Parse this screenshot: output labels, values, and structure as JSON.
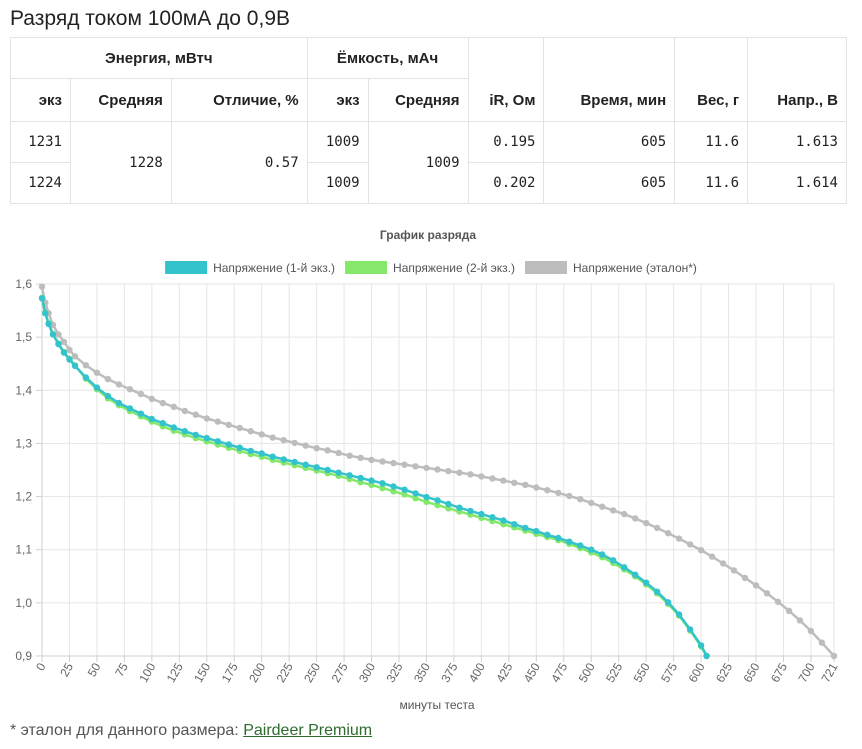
{
  "page": {
    "title": "Разряд током 100мА до 0,9В",
    "footnote_prefix": "* эталон для данного размера: ",
    "footnote_link": "Pairdeer Premium"
  },
  "table": {
    "group_energy": "Энергия, мВтч",
    "group_capacity": "Ёмкость, мАч",
    "col_sample": "экз",
    "col_average": "Средняя",
    "col_difference": "Отличие, %",
    "col_sample2": "экз",
    "col_average2": "Средняя",
    "col_ir": "iR, Ом",
    "col_time": "Время, мин",
    "col_weight": "Вес, г",
    "col_voltage": "Напр., В",
    "energy_avg": "1228",
    "energy_diff": "0.57",
    "capacity_avg": "1009",
    "rows": [
      {
        "energy": "1231",
        "capacity": "1009",
        "ir": "0.195",
        "time": "605",
        "weight": "11.6",
        "voltage": "1.613"
      },
      {
        "energy": "1224",
        "capacity": "1009",
        "ir": "0.202",
        "time": "605",
        "weight": "11.6",
        "voltage": "1.614"
      }
    ]
  },
  "chart_data": {
    "type": "line",
    "title": "График разряда",
    "xlabel": "минуты теста",
    "ylabel": "",
    "xlim": [
      0,
      721
    ],
    "ylim": [
      0.9,
      1.6
    ],
    "x_ticks": [
      "0",
      "25",
      "50",
      "75",
      "100",
      "125",
      "150",
      "175",
      "200",
      "225",
      "250",
      "275",
      "300",
      "325",
      "350",
      "375",
      "400",
      "425",
      "450",
      "475",
      "500",
      "525",
      "550",
      "575",
      "600",
      "625",
      "650",
      "675",
      "700",
      "721"
    ],
    "y_ticks": [
      "0,9",
      "1,0",
      "1,1",
      "1,2",
      "1,3",
      "1,4",
      "1,5",
      "1,6"
    ],
    "grid": true,
    "legend_position": "top",
    "series": [
      {
        "name": "Напряжение (1-й экз.)",
        "color": "#33c3cc",
        "points": [
          [
            0,
            1.573
          ],
          [
            3,
            1.545
          ],
          [
            6,
            1.525
          ],
          [
            10,
            1.505
          ],
          [
            15,
            1.487
          ],
          [
            20,
            1.471
          ],
          [
            25,
            1.458
          ],
          [
            30,
            1.446
          ],
          [
            40,
            1.424
          ],
          [
            50,
            1.405
          ],
          [
            60,
            1.389
          ],
          [
            70,
            1.376
          ],
          [
            80,
            1.366
          ],
          [
            90,
            1.356
          ],
          [
            100,
            1.346
          ],
          [
            110,
            1.338
          ],
          [
            120,
            1.33
          ],
          [
            130,
            1.323
          ],
          [
            140,
            1.316
          ],
          [
            150,
            1.31
          ],
          [
            160,
            1.304
          ],
          [
            170,
            1.298
          ],
          [
            180,
            1.292
          ],
          [
            190,
            1.286
          ],
          [
            200,
            1.281
          ],
          [
            210,
            1.275
          ],
          [
            220,
            1.27
          ],
          [
            230,
            1.265
          ],
          [
            240,
            1.26
          ],
          [
            250,
            1.255
          ],
          [
            260,
            1.25
          ],
          [
            270,
            1.245
          ],
          [
            280,
            1.24
          ],
          [
            290,
            1.235
          ],
          [
            300,
            1.23
          ],
          [
            310,
            1.225
          ],
          [
            320,
            1.219
          ],
          [
            330,
            1.213
          ],
          [
            340,
            1.206
          ],
          [
            350,
            1.199
          ],
          [
            360,
            1.193
          ],
          [
            370,
            1.186
          ],
          [
            380,
            1.179
          ],
          [
            390,
            1.173
          ],
          [
            400,
            1.167
          ],
          [
            410,
            1.161
          ],
          [
            420,
            1.155
          ],
          [
            430,
            1.148
          ],
          [
            440,
            1.141
          ],
          [
            450,
            1.135
          ],
          [
            460,
            1.128
          ],
          [
            470,
            1.122
          ],
          [
            480,
            1.115
          ],
          [
            490,
            1.108
          ],
          [
            500,
            1.1
          ],
          [
            510,
            1.091
          ],
          [
            520,
            1.08
          ],
          [
            530,
            1.067
          ],
          [
            540,
            1.053
          ],
          [
            550,
            1.038
          ],
          [
            560,
            1.021
          ],
          [
            570,
            1.001
          ],
          [
            580,
            0.978
          ],
          [
            590,
            0.95
          ],
          [
            600,
            0.92
          ],
          [
            605,
            0.9
          ]
        ]
      },
      {
        "name": "Напряжение (2-й экз.)",
        "color": "#86e86a",
        "points": [
          [
            0,
            1.574
          ],
          [
            3,
            1.546
          ],
          [
            6,
            1.526
          ],
          [
            10,
            1.506
          ],
          [
            15,
            1.488
          ],
          [
            20,
            1.472
          ],
          [
            25,
            1.459
          ],
          [
            30,
            1.447
          ],
          [
            40,
            1.422
          ],
          [
            50,
            1.402
          ],
          [
            60,
            1.385
          ],
          [
            70,
            1.372
          ],
          [
            80,
            1.361
          ],
          [
            90,
            1.351
          ],
          [
            100,
            1.341
          ],
          [
            110,
            1.332
          ],
          [
            120,
            1.324
          ],
          [
            130,
            1.317
          ],
          [
            140,
            1.31
          ],
          [
            150,
            1.304
          ],
          [
            160,
            1.298
          ],
          [
            170,
            1.292
          ],
          [
            180,
            1.286
          ],
          [
            190,
            1.28
          ],
          [
            200,
            1.275
          ],
          [
            210,
            1.269
          ],
          [
            220,
            1.264
          ],
          [
            230,
            1.259
          ],
          [
            240,
            1.254
          ],
          [
            250,
            1.249
          ],
          [
            260,
            1.244
          ],
          [
            270,
            1.239
          ],
          [
            280,
            1.233
          ],
          [
            290,
            1.227
          ],
          [
            300,
            1.222
          ],
          [
            310,
            1.216
          ],
          [
            320,
            1.21
          ],
          [
            330,
            1.204
          ],
          [
            340,
            1.197
          ],
          [
            350,
            1.19
          ],
          [
            360,
            1.184
          ],
          [
            370,
            1.178
          ],
          [
            380,
            1.172
          ],
          [
            390,
            1.166
          ],
          [
            400,
            1.16
          ],
          [
            410,
            1.154
          ],
          [
            420,
            1.148
          ],
          [
            430,
            1.142
          ],
          [
            440,
            1.136
          ],
          [
            450,
            1.13
          ],
          [
            460,
            1.124
          ],
          [
            470,
            1.118
          ],
          [
            480,
            1.111
          ],
          [
            490,
            1.103
          ],
          [
            500,
            1.095
          ],
          [
            510,
            1.086
          ],
          [
            520,
            1.075
          ],
          [
            530,
            1.063
          ],
          [
            540,
            1.05
          ],
          [
            550,
            1.035
          ],
          [
            560,
            1.018
          ],
          [
            570,
            0.998
          ],
          [
            580,
            0.976
          ],
          [
            590,
            0.948
          ],
          [
            600,
            0.918
          ],
          [
            605,
            0.9
          ]
        ]
      },
      {
        "name": "Напряжение (эталон*)",
        "color": "#bdbdbd",
        "points": [
          [
            0,
            1.595
          ],
          [
            3,
            1.565
          ],
          [
            6,
            1.545
          ],
          [
            10,
            1.523
          ],
          [
            15,
            1.505
          ],
          [
            20,
            1.491
          ],
          [
            25,
            1.476
          ],
          [
            30,
            1.464
          ],
          [
            40,
            1.447
          ],
          [
            50,
            1.433
          ],
          [
            60,
            1.421
          ],
          [
            70,
            1.411
          ],
          [
            80,
            1.402
          ],
          [
            90,
            1.393
          ],
          [
            100,
            1.384
          ],
          [
            110,
            1.376
          ],
          [
            120,
            1.369
          ],
          [
            130,
            1.361
          ],
          [
            140,
            1.354
          ],
          [
            150,
            1.347
          ],
          [
            160,
            1.341
          ],
          [
            170,
            1.335
          ],
          [
            180,
            1.329
          ],
          [
            190,
            1.323
          ],
          [
            200,
            1.317
          ],
          [
            210,
            1.311
          ],
          [
            220,
            1.306
          ],
          [
            230,
            1.301
          ],
          [
            240,
            1.296
          ],
          [
            250,
            1.291
          ],
          [
            260,
            1.287
          ],
          [
            270,
            1.282
          ],
          [
            280,
            1.277
          ],
          [
            290,
            1.273
          ],
          [
            300,
            1.269
          ],
          [
            310,
            1.266
          ],
          [
            320,
            1.263
          ],
          [
            330,
            1.26
          ],
          [
            340,
            1.257
          ],
          [
            350,
            1.254
          ],
          [
            360,
            1.251
          ],
          [
            370,
            1.248
          ],
          [
            380,
            1.245
          ],
          [
            390,
            1.242
          ],
          [
            400,
            1.238
          ],
          [
            410,
            1.234
          ],
          [
            420,
            1.23
          ],
          [
            430,
            1.226
          ],
          [
            440,
            1.222
          ],
          [
            450,
            1.217
          ],
          [
            460,
            1.212
          ],
          [
            470,
            1.207
          ],
          [
            480,
            1.201
          ],
          [
            490,
            1.195
          ],
          [
            500,
            1.188
          ],
          [
            510,
            1.181
          ],
          [
            520,
            1.174
          ],
          [
            530,
            1.167
          ],
          [
            540,
            1.159
          ],
          [
            550,
            1.15
          ],
          [
            560,
            1.141
          ],
          [
            570,
            1.131
          ],
          [
            580,
            1.121
          ],
          [
            590,
            1.11
          ],
          [
            600,
            1.099
          ],
          [
            610,
            1.087
          ],
          [
            620,
            1.074
          ],
          [
            630,
            1.061
          ],
          [
            640,
            1.047
          ],
          [
            650,
            1.033
          ],
          [
            660,
            1.018
          ],
          [
            670,
            1.002
          ],
          [
            680,
            0.985
          ],
          [
            690,
            0.967
          ],
          [
            700,
            0.947
          ],
          [
            710,
            0.925
          ],
          [
            721,
            0.9
          ]
        ]
      }
    ]
  }
}
